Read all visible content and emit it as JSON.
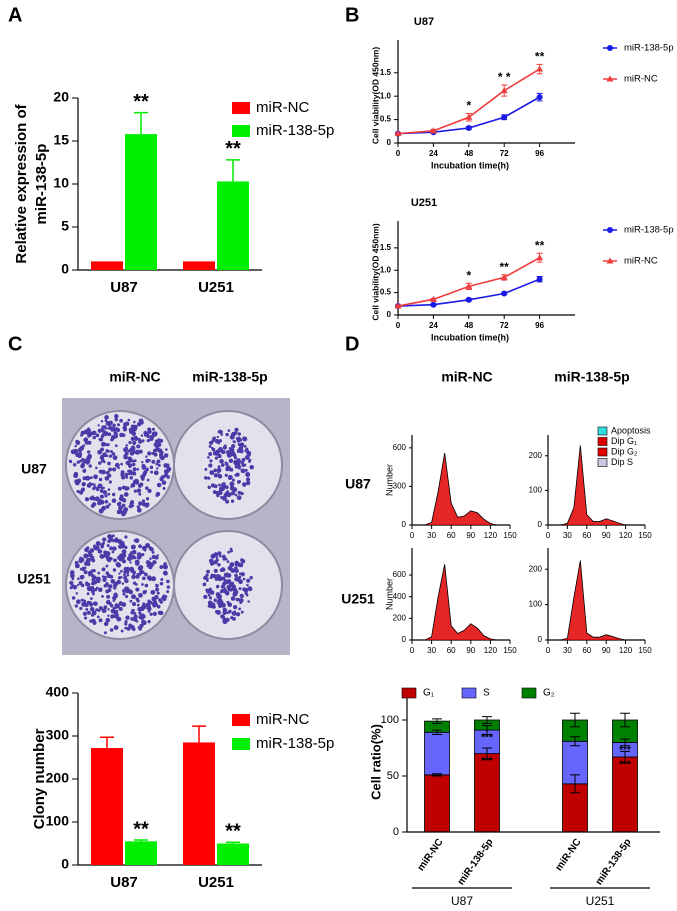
{
  "panels": [
    "A",
    "B",
    "C",
    "D"
  ],
  "image_c": {
    "columns": [
      "miR-NC",
      "miR-138-5p"
    ],
    "rows": [
      "U87",
      "U251"
    ]
  },
  "image_d": {
    "columns": [
      "miR-NC",
      "miR-138-5p"
    ],
    "rows": [
      "U87",
      "U251"
    ]
  },
  "chart_data": [
    {
      "type": "bar",
      "ylabel": [
        "Relative expression of",
        "miR-138-5p"
      ],
      "categories": [
        "U87",
        "U251"
      ],
      "series": [
        {
          "name": "miR-NC",
          "color": "#ff0000",
          "values": [
            1,
            1
          ]
        },
        {
          "name": "miR-138-5p",
          "color": "#00ee00",
          "values": [
            15.8,
            10.3
          ],
          "errors": [
            2.5,
            2.5
          ]
        }
      ],
      "ylim": [
        0,
        20
      ],
      "yticks": [
        0,
        5,
        10,
        15,
        20
      ],
      "annotations": [
        {
          "text": "**",
          "series": 1,
          "index": 0
        },
        {
          "text": "**",
          "series": 1,
          "index": 1
        }
      ]
    },
    {
      "type": "line",
      "title": "U87",
      "xlabel": "Incubation time(h)",
      "ylabel": "Cell viability(OD 450nm)",
      "x": [
        0,
        24,
        48,
        72,
        96
      ],
      "xlim": [
        0,
        120
      ],
      "xticks": [
        0,
        24,
        48,
        72,
        96
      ],
      "ylim": [
        0,
        2.2
      ],
      "yticks": [
        0,
        0.5,
        {
          "value": 1,
          "label": "1.0"
        },
        1.5
      ],
      "series": [
        {
          "name": "miR-138-5p",
          "color": "#1a1ae6",
          "marker": "circle",
          "values": [
            0.2,
            0.23,
            0.32,
            0.55,
            0.98
          ],
          "errors": [
            0.02,
            0.02,
            0.03,
            0.05,
            0.08
          ]
        },
        {
          "name": "miR-NC",
          "color": "#f03c3c",
          "marker": "triangle",
          "values": [
            0.2,
            0.26,
            0.55,
            1.12,
            1.58
          ],
          "errors": [
            0.02,
            0.03,
            0.08,
            0.12,
            0.1
          ]
        }
      ],
      "annotations": [
        {
          "text": "*",
          "index": 2
        },
        {
          "text": "* *",
          "index": 3
        },
        {
          "text": "**",
          "index": 4
        }
      ]
    },
    {
      "type": "line",
      "title": "U251",
      "xlabel": "Incubation time(h)",
      "ylabel": "Cell viability(OD 450nm)",
      "x": [
        0,
        24,
        48,
        72,
        96
      ],
      "xlim": [
        0,
        120
      ],
      "xticks": [
        0,
        24,
        48,
        72,
        96
      ],
      "ylim": [
        0,
        2.1
      ],
      "yticks": [
        0,
        0.5,
        {
          "value": 1,
          "label": "1.0"
        },
        1.5
      ],
      "series": [
        {
          "name": "miR-138-5p",
          "color": "#1a1ae6",
          "marker": "circle",
          "values": [
            0.2,
            0.23,
            0.34,
            0.48,
            0.8
          ],
          "errors": [
            0.02,
            0.02,
            0.03,
            0.02,
            0.06
          ]
        },
        {
          "name": "miR-NC",
          "color": "#f03c3c",
          "marker": "triangle",
          "values": [
            0.2,
            0.35,
            0.64,
            0.84,
            1.28
          ],
          "errors": [
            0.02,
            0.02,
            0.07,
            0.06,
            0.1
          ]
        }
      ],
      "annotations": [
        {
          "text": "*",
          "index": 2
        },
        {
          "text": "**",
          "index": 3
        },
        {
          "text": "**",
          "index": 4
        }
      ]
    },
    {
      "type": "bar",
      "ylabel": [
        "Clony number"
      ],
      "categories": [
        "U87",
        "U251"
      ],
      "series": [
        {
          "name": "miR-NC",
          "color": "#ff0000",
          "values": [
            272,
            285
          ],
          "errors": [
            25,
            38
          ]
        },
        {
          "name": "miR-138-5p",
          "color": "#00ee00",
          "values": [
            55,
            50
          ],
          "errors": [
            3,
            3
          ]
        }
      ],
      "ylim": [
        0,
        400
      ],
      "yticks": [
        0,
        100,
        200,
        300,
        400
      ],
      "annotations": [
        {
          "text": "**",
          "series": 1,
          "index": 0
        },
        {
          "text": "**",
          "series": 1,
          "index": 1
        }
      ]
    },
    {
      "type": "flow",
      "ylabel": "Number",
      "color": "#e00000",
      "x": [
        0,
        10,
        20,
        30,
        40,
        50,
        60,
        70,
        80,
        90,
        100,
        110,
        120,
        130,
        140,
        150
      ],
      "values": [
        0,
        0,
        0,
        20,
        260,
        560,
        170,
        60,
        70,
        110,
        95,
        45,
        12,
        0,
        0,
        0
      ],
      "xlim": [
        0,
        150
      ],
      "xticks": [
        0,
        30,
        60,
        90,
        120,
        150
      ],
      "ylim": [
        0,
        700
      ],
      "yticks": [
        0,
        300,
        600
      ]
    },
    {
      "type": "flow",
      "color": "#e00000",
      "x": [
        0,
        10,
        20,
        30,
        40,
        50,
        60,
        70,
        80,
        90,
        100,
        110,
        120,
        130,
        140,
        150
      ],
      "values": [
        0,
        0,
        0,
        5,
        50,
        230,
        30,
        10,
        10,
        18,
        12,
        5,
        0,
        0,
        0,
        0
      ],
      "xlim": [
        0,
        150
      ],
      "xticks": [
        0,
        30,
        60,
        90,
        120,
        150
      ],
      "ylim": [
        0,
        260
      ],
      "yticks": [
        0,
        100,
        200
      ],
      "legend": [
        {
          "name": "Apoptosis",
          "color": "#33dddd"
        },
        {
          "name": "Dip G₁",
          "color": "#e00000"
        },
        {
          "name": "Dip G₂",
          "color": "#e00000"
        },
        {
          "name": "Dip S",
          "color": "#c8c8e0"
        }
      ]
    },
    {
      "type": "flow",
      "ylabel": "Number",
      "color": "#e00000",
      "x": [
        0,
        10,
        20,
        30,
        40,
        50,
        60,
        70,
        80,
        90,
        100,
        110,
        120,
        130,
        140,
        150
      ],
      "values": [
        0,
        0,
        0,
        30,
        400,
        700,
        130,
        60,
        90,
        150,
        110,
        40,
        10,
        0,
        0,
        0
      ],
      "xlim": [
        0,
        150
      ],
      "xticks": [
        0,
        30,
        60,
        90,
        120,
        150
      ],
      "ylim": [
        0,
        850
      ],
      "yticks": [
        0,
        200,
        400,
        600
      ]
    },
    {
      "type": "flow",
      "color": "#e00000",
      "x": [
        0,
        10,
        20,
        30,
        40,
        50,
        60,
        70,
        80,
        90,
        100,
        110,
        120,
        130,
        140,
        150
      ],
      "values": [
        0,
        0,
        0,
        5,
        120,
        225,
        20,
        8,
        8,
        15,
        10,
        4,
        0,
        0,
        0,
        0
      ],
      "xlim": [
        0,
        150
      ],
      "xticks": [
        0,
        30,
        60,
        90,
        120,
        150
      ],
      "ylim": [
        0,
        260
      ],
      "yticks": [
        0,
        100,
        200
      ]
    },
    {
      "type": "stacked_bar",
      "ylabel": "Cell ratio(%)",
      "categories": [
        "miR-NC",
        "miR-138-5p",
        "miR-NC",
        "miR-138-5p"
      ],
      "groups": [
        "U87",
        "U251"
      ],
      "series": [
        {
          "name": "G₁",
          "color": "#c00000",
          "values": [
            51,
            70,
            43,
            67
          ],
          "errors": [
            1,
            5,
            8,
            5
          ]
        },
        {
          "name": "S",
          "color": "#6666ff",
          "values": [
            38,
            21,
            38,
            13
          ],
          "errors": [
            2,
            4,
            4,
            3
          ]
        },
        {
          "name": "G₂",
          "color": "#008000",
          "values": [
            10,
            9,
            19,
            20
          ],
          "errors": [
            2,
            3,
            6,
            6
          ]
        }
      ],
      "ylim": [
        0,
        125
      ],
      "yticks": [
        0,
        50,
        100
      ],
      "annotations": [
        {
          "text": "***",
          "series": 0,
          "index": 1
        },
        {
          "text": "***",
          "series": 1,
          "index": 1
        },
        {
          "text": "***",
          "series": 0,
          "index": 3
        },
        {
          "text": "***",
          "series": 1,
          "index": 3
        }
      ]
    }
  ]
}
